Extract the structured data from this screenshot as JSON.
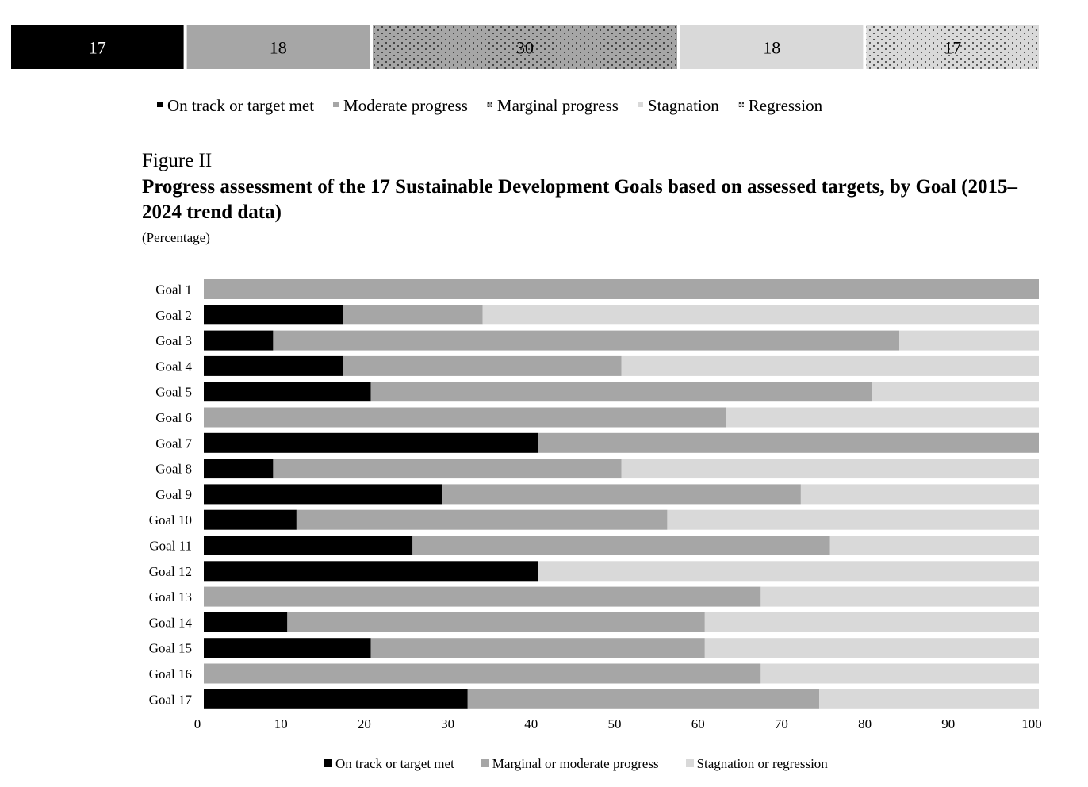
{
  "chart_data": [
    {
      "type": "bar",
      "orientation": "horizontal-stacked",
      "segments": [
        {
          "name": "On track or target met",
          "value": 17,
          "fill": "#000000",
          "pattern": "solid",
          "text_color": "#ffffff"
        },
        {
          "name": "Moderate progress",
          "value": 18,
          "fill": "#a6a6a6",
          "pattern": "solid",
          "text_color": "#000000"
        },
        {
          "name": "Marginal progress",
          "value": 30,
          "fill": "#a6a6a6",
          "pattern": "dots",
          "text_color": "#000000"
        },
        {
          "name": "Stagnation",
          "value": 18,
          "fill": "#d9d9d9",
          "pattern": "solid",
          "text_color": "#000000"
        },
        {
          "name": "Regression",
          "value": 17,
          "fill": "#d9d9d9",
          "pattern": "dots",
          "text_color": "#000000"
        }
      ]
    },
    {
      "type": "bar",
      "orientation": "horizontal-stacked",
      "label": "Figure II",
      "title": "Progress assessment of the 17 Sustainable Development Goals based on assessed targets, by Goal (2015–2024 trend data)",
      "subtitle": "(Percentage)",
      "categories": [
        "Goal 1",
        "Goal 2",
        "Goal 3",
        "Goal 4",
        "Goal 5",
        "Goal 6",
        "Goal 7",
        "Goal 8",
        "Goal 9",
        "Goal 10",
        "Goal 11",
        "Goal 12",
        "Goal 13",
        "Goal 14",
        "Goal 15",
        "Goal 16",
        "Goal 17"
      ],
      "series": [
        {
          "name": "On track or target met",
          "color": "#000000",
          "values": [
            0,
            16.7,
            8.3,
            16.7,
            20,
            0,
            40,
            8.3,
            28.6,
            11.1,
            25,
            40,
            0,
            10,
            20,
            0,
            31.6
          ]
        },
        {
          "name": "Marginal or moderate progress",
          "color": "#a6a6a6",
          "values": [
            100,
            16.7,
            75,
            33.3,
            60,
            62.5,
            60,
            41.7,
            42.9,
            44.4,
            50,
            0,
            66.7,
            50,
            40,
            66.7,
            42.1
          ]
        },
        {
          "name": "Stagnation or regression",
          "color": "#d9d9d9",
          "values": [
            0,
            66.6,
            16.7,
            50,
            20,
            37.5,
            0,
            50,
            28.5,
            44.5,
            25,
            60,
            33.3,
            40,
            40,
            33.3,
            26.3
          ]
        }
      ],
      "xlim": [
        0,
        100
      ],
      "xticks": [
        0,
        10,
        20,
        30,
        40,
        50,
        60,
        70,
        80,
        90,
        100
      ],
      "legend": "bottom",
      "grid": false
    }
  ]
}
